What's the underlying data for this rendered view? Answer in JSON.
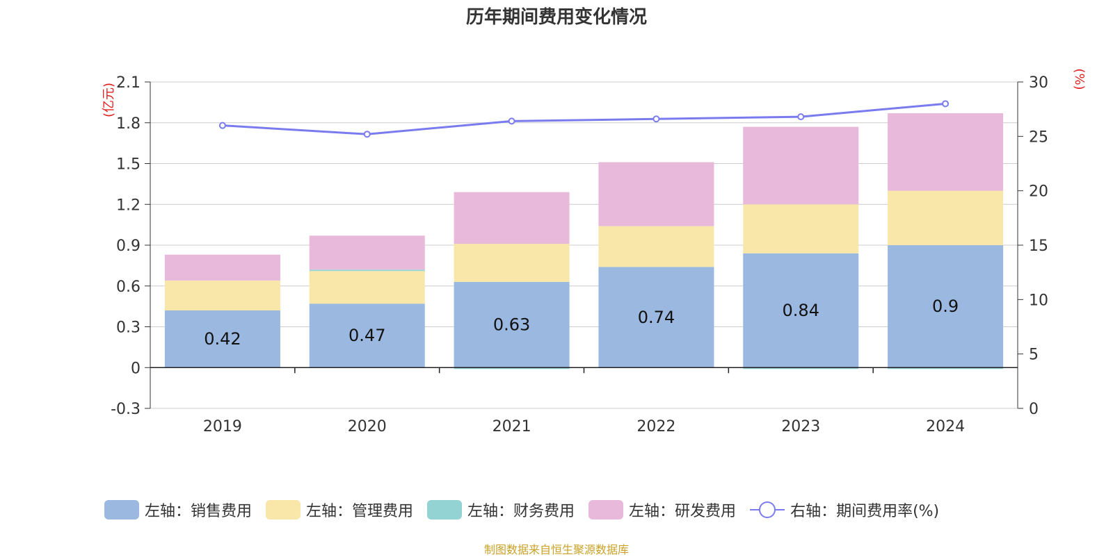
{
  "title": "历年期间费用变化情况",
  "source": "制图数据来自恒生聚源数据库",
  "chart_data": {
    "type": "bar",
    "stacked": true,
    "categories": [
      "2019",
      "2020",
      "2021",
      "2022",
      "2023",
      "2024"
    ],
    "left_axis": {
      "unit": "(亿元)",
      "ylim": [
        -0.3,
        2.1
      ],
      "ticks": [
        "2.1",
        "1.8",
        "1.5",
        "1.2",
        "0.9",
        "0.6",
        "0.3",
        "0",
        "-0.3"
      ]
    },
    "right_axis": {
      "unit": "(%)",
      "ylim": [
        0,
        30
      ],
      "ticks": [
        "30",
        "25",
        "20",
        "15",
        "10",
        "5",
        "0"
      ]
    },
    "series": [
      {
        "name": "左轴：销售费用",
        "axis": "left",
        "color": "#9bb8e0",
        "values": [
          0.42,
          0.47,
          0.63,
          0.74,
          0.84,
          0.9
        ],
        "labels": [
          "0.42",
          "0.47",
          "0.63",
          "0.74",
          "0.84",
          "0.9"
        ]
      },
      {
        "name": "左轴：管理费用",
        "axis": "left",
        "color": "#f8e7a8",
        "values": [
          0.22,
          0.24,
          0.28,
          0.3,
          0.36,
          0.4
        ]
      },
      {
        "name": "左轴：财务费用",
        "axis": "left",
        "color": "#93d3d3",
        "values": [
          0.0,
          0.01,
          -0.003,
          0.0,
          -0.003,
          -0.003
        ]
      },
      {
        "name": "左轴：研发费用",
        "axis": "left",
        "color": "#e8b9da",
        "values": [
          0.19,
          0.25,
          0.38,
          0.47,
          0.57,
          0.57
        ]
      },
      {
        "name": "右轴：期间费用率(%)",
        "axis": "right",
        "type": "line",
        "color": "#7b7bf0",
        "values": [
          26.0,
          25.2,
          26.4,
          26.6,
          26.8,
          28.0
        ]
      }
    ],
    "grid": true,
    "legend_position": "bottom"
  }
}
